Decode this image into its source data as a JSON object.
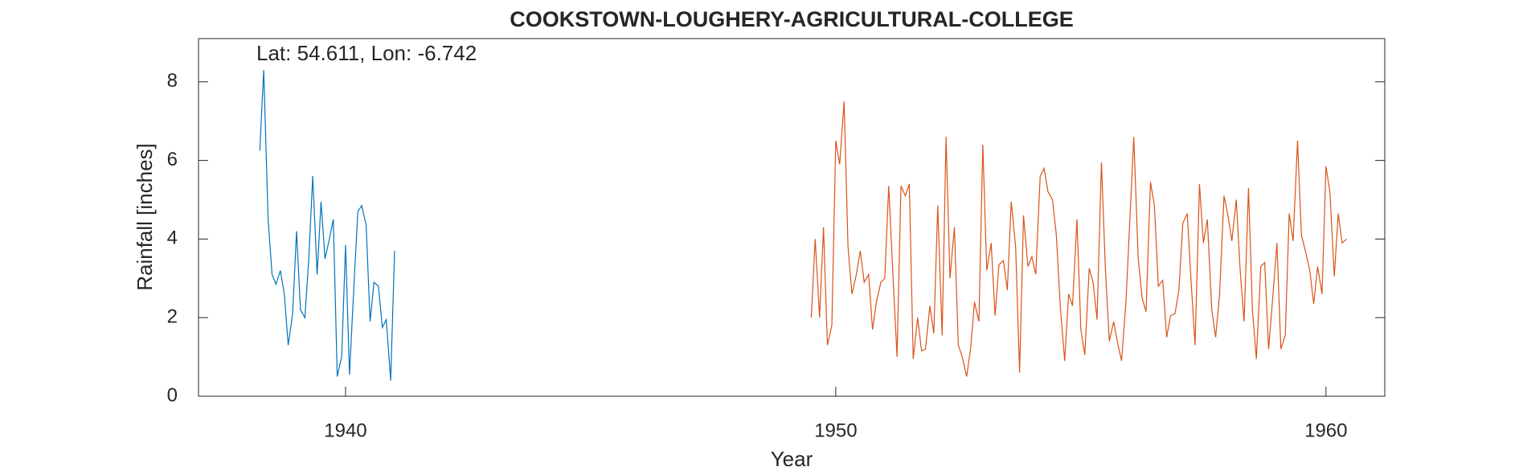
{
  "chart_data": {
    "type": "line",
    "title": "COOKSTOWN-LOUGHERY-AGRICULTURAL-COLLEGE",
    "annotation": "Lat: 54.611, Lon: -6.742",
    "xlabel": "Year",
    "ylabel": "Rainfall [inches]",
    "xlim": [
      1937,
      1961.2
    ],
    "xticks": [
      1940,
      1950,
      1960
    ],
    "ylim": [
      0,
      9.1
    ],
    "yticks": [
      0,
      2,
      4,
      6,
      8
    ],
    "series": [
      {
        "color": "#0072BD",
        "x": [
          1938.25,
          1938.33,
          1938.42,
          1938.5,
          1938.58,
          1938.67,
          1938.75,
          1938.83,
          1938.92,
          1939.0,
          1939.08,
          1939.17,
          1939.25,
          1939.33,
          1939.42,
          1939.5,
          1939.58,
          1939.67,
          1939.75,
          1939.83,
          1939.92,
          1940.0,
          1940.08,
          1940.17,
          1940.25,
          1940.33,
          1940.42,
          1940.5,
          1940.58,
          1940.67,
          1940.75,
          1940.83,
          1940.92,
          1941.0
        ],
        "values": [
          6.25,
          8.3,
          4.5,
          3.1,
          2.85,
          3.2,
          2.6,
          1.3,
          2.1,
          4.2,
          2.2,
          2.0,
          3.5,
          5.6,
          3.1,
          4.95,
          3.5,
          4.0,
          4.5,
          0.5,
          1.0,
          3.85,
          0.55,
          2.8,
          4.7,
          4.85,
          4.35,
          1.9,
          2.9,
          2.8,
          1.75,
          1.95,
          0.4,
          3.7
        ]
      },
      {
        "color": "#D95319",
        "x": [
          1949.5,
          1949.58,
          1949.67,
          1949.75,
          1949.83,
          1949.92,
          1950.0,
          1950.08,
          1950.17,
          1950.25,
          1950.33,
          1950.42,
          1950.5,
          1950.58,
          1950.67,
          1950.75,
          1950.83,
          1950.92,
          1951.0,
          1951.08,
          1951.17,
          1951.25,
          1951.33,
          1951.42,
          1951.5,
          1951.58,
          1951.67,
          1951.75,
          1951.83,
          1951.92,
          1952.0,
          1952.08,
          1952.17,
          1952.25,
          1952.33,
          1952.42,
          1952.5,
          1952.58,
          1952.67,
          1952.75,
          1952.83,
          1952.92,
          1953.0,
          1953.08,
          1953.17,
          1953.25,
          1953.33,
          1953.42,
          1953.5,
          1953.58,
          1953.67,
          1953.75,
          1953.83,
          1953.92,
          1954.0,
          1954.08,
          1954.17,
          1954.25,
          1954.33,
          1954.42,
          1954.5,
          1954.58,
          1954.67,
          1954.75,
          1954.83,
          1954.92,
          1955.0,
          1955.08,
          1955.17,
          1955.25,
          1955.33,
          1955.42,
          1955.5,
          1955.58,
          1955.67,
          1955.75,
          1955.83,
          1955.92,
          1956.0,
          1956.08,
          1956.17,
          1956.25,
          1956.33,
          1956.42,
          1956.5,
          1956.58,
          1956.67,
          1956.75,
          1956.83,
          1956.92,
          1957.0,
          1957.08,
          1957.17,
          1957.25,
          1957.33,
          1957.42,
          1957.5,
          1957.58,
          1957.67,
          1957.75,
          1957.83,
          1957.92,
          1958.0,
          1958.08,
          1958.17,
          1958.25,
          1958.33,
          1958.42,
          1958.5,
          1958.58,
          1958.67,
          1958.75,
          1958.83,
          1958.92,
          1959.0,
          1959.08,
          1959.17,
          1959.25,
          1959.33,
          1959.42,
          1959.5,
          1959.58,
          1959.67,
          1959.75,
          1959.83,
          1959.92,
          1960.0,
          1960.08,
          1960.17,
          1960.25,
          1960.33,
          1960.42
        ],
        "values": [
          2.0,
          4.0,
          2.0,
          4.3,
          1.3,
          1.8,
          6.5,
          5.9,
          7.5,
          3.8,
          2.6,
          3.1,
          3.7,
          2.9,
          3.1,
          1.7,
          2.4,
          2.9,
          3.0,
          5.35,
          3.0,
          1.0,
          5.35,
          5.1,
          5.4,
          0.95,
          2.0,
          1.15,
          1.2,
          2.3,
          1.6,
          4.85,
          1.55,
          6.6,
          3.0,
          4.3,
          1.3,
          1.0,
          0.5,
          1.2,
          2.4,
          1.9,
          6.4,
          3.2,
          3.9,
          2.05,
          3.35,
          3.45,
          2.7,
          4.95,
          3.8,
          0.6,
          4.6,
          3.3,
          3.55,
          3.1,
          5.6,
          5.8,
          5.2,
          5.0,
          4.1,
          2.3,
          0.9,
          2.6,
          2.3,
          4.5,
          1.7,
          1.05,
          3.25,
          2.9,
          1.95,
          5.95,
          3.25,
          1.4,
          1.9,
          1.35,
          0.9,
          2.4,
          4.5,
          6.6,
          3.5,
          2.5,
          2.15,
          5.45,
          4.85,
          2.8,
          2.95,
          1.5,
          2.05,
          2.1,
          2.7,
          4.4,
          4.65,
          2.9,
          1.3,
          5.4,
          3.9,
          4.5,
          2.2,
          1.5,
          2.6,
          5.1,
          4.6,
          3.95,
          5.0,
          3.2,
          1.9,
          5.3,
          2.2,
          0.95,
          3.3,
          3.4,
          1.2,
          2.6,
          3.9,
          1.2,
          1.55,
          4.65,
          3.95,
          6.5,
          4.1,
          3.7,
          3.2,
          2.35,
          3.3,
          2.6,
          5.85,
          5.2,
          3.05,
          4.65,
          3.9,
          4.0
        ]
      }
    ]
  }
}
